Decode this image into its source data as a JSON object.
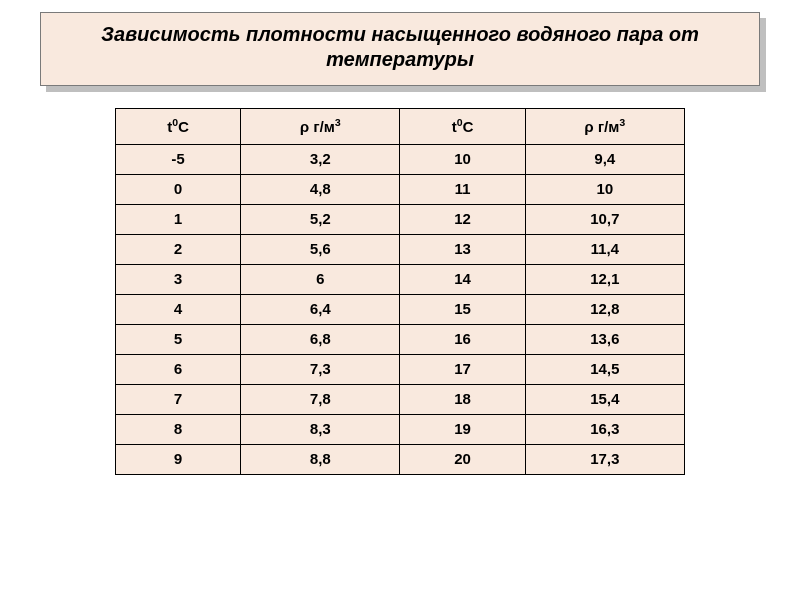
{
  "title": "Зависимость плотности насыщенного водяного пара от температуры",
  "table": {
    "background_color": "#f9e9de",
    "border_color": "#000000",
    "font_size": 15,
    "font_weight": "bold",
    "columns": [
      {
        "label_prefix": "t",
        "label_sup": "0",
        "label_suffix": "С"
      },
      {
        "label_symbol": "ρ",
        "label_unit_prefix": " г/м",
        "label_unit_sup": "3"
      },
      {
        "label_prefix": "t",
        "label_sup": "0",
        "label_suffix": "С"
      },
      {
        "label_symbol": "ρ",
        "label_unit_prefix": " г/м",
        "label_unit_sup": "3"
      }
    ],
    "col_widths_pct": [
      22,
      28,
      22,
      28
    ],
    "rows": [
      [
        "-5",
        "3,2",
        "10",
        "9,4"
      ],
      [
        "0",
        "4,8",
        "11",
        "10"
      ],
      [
        "1",
        "5,2",
        "12",
        "10,7"
      ],
      [
        "2",
        "5,6",
        "13",
        "11,4"
      ],
      [
        "3",
        "6",
        "14",
        "12,1"
      ],
      [
        "4",
        "6,4",
        "15",
        "12,8"
      ],
      [
        "5",
        "6,8",
        "16",
        "13,6"
      ],
      [
        "6",
        "7,3",
        "17",
        "14,5"
      ],
      [
        "7",
        "7,8",
        "18",
        "15,4"
      ],
      [
        "8",
        "8,3",
        "19",
        "16,3"
      ],
      [
        "9",
        "8,8",
        "20",
        "17,3"
      ]
    ]
  },
  "title_style": {
    "background_color": "#f9e9de",
    "shadow_color": "#bfbfbf",
    "border_color": "#7a7a7a",
    "font_size": 20,
    "italic": true,
    "bold": true
  }
}
